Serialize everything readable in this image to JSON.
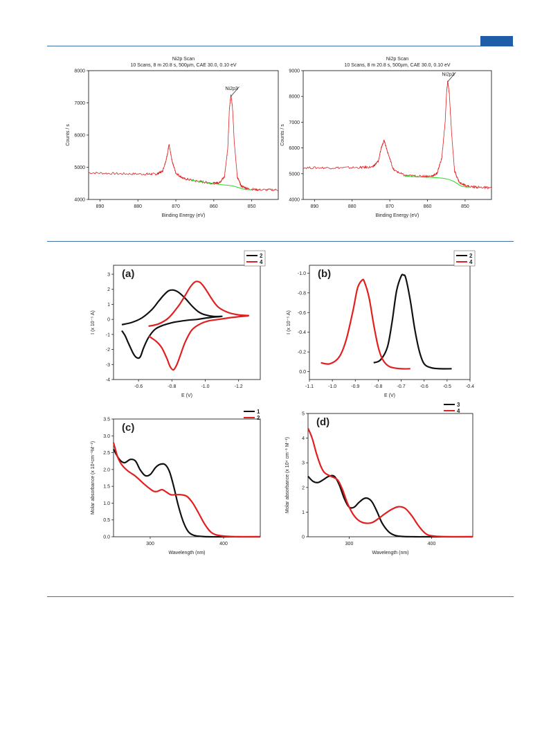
{
  "page": {
    "accent_color": "#1f5da8",
    "rule_color": "#3d6fa8"
  },
  "chart_data": [
    {
      "id": "xps-left",
      "type": "line",
      "title": "Ni2p Scan",
      "subtitle": "10 Scans,  8 m 20.8 s,  500µm,  CAE 30.0,  0.10 eV",
      "xlabel": "Binding Energy  (eV)",
      "ylabel": "Counts / s",
      "xlim": [
        893,
        843
      ],
      "ylim": [
        4000,
        8000
      ],
      "xticks": [
        "890",
        "880",
        "870",
        "860",
        "850"
      ],
      "yticks": [
        "4000",
        "5000",
        "6000",
        "7000",
        "8000"
      ],
      "annotation": "Ni2p3",
      "annotation_x": 855.5,
      "series": [
        {
          "color": "#e02020",
          "noisy": true,
          "x": [
            893,
            885,
            878,
            875,
            873.5,
            872.5,
            871.8,
            871,
            870,
            868,
            865,
            862,
            860,
            858.5,
            857.2,
            856.3,
            855.9,
            855.5,
            855.1,
            854.6,
            853.8,
            852.8,
            851,
            848,
            843
          ],
          "y": [
            4830,
            4800,
            4790,
            4790,
            4880,
            5250,
            5700,
            5200,
            4820,
            4650,
            4580,
            4530,
            4500,
            4530,
            4700,
            5600,
            6800,
            7250,
            6900,
            5800,
            4700,
            4420,
            4330,
            4300,
            4300
          ]
        },
        {
          "color": "#22dd22",
          "noisy": false,
          "x": [
            866,
            862,
            858,
            855,
            852,
            850
          ],
          "y": [
            4600,
            4520,
            4460,
            4420,
            4320,
            4300
          ]
        }
      ]
    },
    {
      "id": "xps-right",
      "type": "line",
      "title": "Ni2p Scan",
      "subtitle": "10 Scans,  8 m 20.8 s,  500µm,  CAE 30.0,  0.10 eV",
      "xlabel": "Binding Energy  (eV)",
      "ylabel": "Counts / s",
      "xlim": [
        893,
        843
      ],
      "ylim": [
        4000,
        9000
      ],
      "xticks": [
        "890",
        "880",
        "870",
        "860",
        "850"
      ],
      "yticks": [
        "4000",
        "5000",
        "6000",
        "7000",
        "8000",
        "9000"
      ],
      "annotation": "Ni2p3",
      "annotation_x": 854.7,
      "series": [
        {
          "color": "#e02020",
          "noisy": true,
          "x": [
            893,
            885,
            878,
            874.5,
            873,
            872.2,
            871.5,
            870.5,
            869,
            866,
            862,
            859,
            857.5,
            856.2,
            855.3,
            854.9,
            854.6,
            854.2,
            853.6,
            852.8,
            851.5,
            849,
            846,
            843
          ],
          "y": [
            5230,
            5230,
            5240,
            5260,
            5500,
            6050,
            6300,
            5800,
            5150,
            4930,
            4900,
            4900,
            5000,
            5600,
            7000,
            8200,
            8600,
            8100,
            6600,
            5100,
            4650,
            4500,
            4470,
            4450
          ]
        },
        {
          "color": "#22dd22",
          "noisy": false,
          "x": [
            866,
            861,
            857,
            855,
            853,
            851,
            849
          ],
          "y": [
            4900,
            4870,
            4840,
            4800,
            4700,
            4520,
            4470
          ]
        }
      ]
    },
    {
      "id": "cv-a",
      "type": "line",
      "panel_label": "(a)",
      "xlabel": "E (V)",
      "ylabel": "I (x 10⁻⁵ A)",
      "xlim": [
        -0.45,
        -1.33
      ],
      "ylim": [
        -4,
        3.6
      ],
      "xticks": [
        "-0.6",
        "-0.8",
        "-1.0",
        "-1.2"
      ],
      "xtick_values": [
        -0.6,
        -0.8,
        -1.0,
        -1.2
      ],
      "yticks": [
        "-4",
        "-3",
        "-2",
        "-1",
        "0",
        "1",
        "2",
        "3"
      ],
      "ytick_values": [
        -4,
        -3,
        -2,
        -1,
        0,
        1,
        2,
        3
      ],
      "legend": [
        "2",
        "4"
      ],
      "series": [
        {
          "name": "2",
          "color": "#111111",
          "x": [
            -0.5,
            -0.56,
            -0.62,
            -0.68,
            -0.72,
            -0.75,
            -0.78,
            -0.81,
            -0.84,
            -0.88,
            -0.92,
            -0.96,
            -1.0,
            -1.05,
            -1.1,
            -1.05,
            -1.0,
            -0.95,
            -0.9,
            -0.85,
            -0.8,
            -0.75,
            -0.7,
            -0.66,
            -0.63,
            -0.61,
            -0.59,
            -0.57,
            -0.54,
            -0.52,
            -0.5
          ],
          "y": [
            -0.35,
            -0.2,
            0.1,
            0.65,
            1.2,
            1.6,
            1.9,
            1.95,
            1.8,
            1.4,
            0.9,
            0.5,
            0.3,
            0.2,
            0.2,
            0.15,
            0.08,
            0.0,
            -0.05,
            -0.12,
            -0.22,
            -0.38,
            -0.65,
            -1.2,
            -1.9,
            -2.5,
            -2.55,
            -2.3,
            -1.6,
            -1.1,
            -0.75
          ]
        },
        {
          "name": "4",
          "color": "#e02020",
          "x": [
            -0.66,
            -0.72,
            -0.78,
            -0.84,
            -0.88,
            -0.91,
            -0.94,
            -0.97,
            -1.0,
            -1.04,
            -1.08,
            -1.14,
            -1.2,
            -1.26,
            -1.2,
            -1.14,
            -1.08,
            -1.02,
            -0.97,
            -0.92,
            -0.88,
            -0.85,
            -0.83,
            -0.81,
            -0.79,
            -0.77,
            -0.74,
            -0.71,
            -0.68,
            -0.66
          ],
          "y": [
            -0.45,
            -0.3,
            0.1,
            0.9,
            1.6,
            2.15,
            2.5,
            2.45,
            2.05,
            1.35,
            0.8,
            0.45,
            0.3,
            0.25,
            0.18,
            0.1,
            0.0,
            -0.1,
            -0.3,
            -0.7,
            -1.5,
            -2.4,
            -3.0,
            -3.35,
            -3.15,
            -2.6,
            -1.9,
            -1.5,
            -1.25,
            -1.1
          ]
        }
      ]
    },
    {
      "id": "dpv-b",
      "type": "line",
      "panel_label": "(b)",
      "xlabel": "E (V)",
      "ylabel": "I (x 10⁻⁵ A)",
      "xlim": [
        -1.1,
        -0.4
      ],
      "ylim": [
        0.08,
        -1.08
      ],
      "xticks": [
        "-1.1",
        "-1.0",
        "-0.9",
        "-0.8",
        "-0.7",
        "-0.6",
        "-0.5",
        "-0.4"
      ],
      "xtick_values": [
        -1.1,
        -1.0,
        -0.9,
        -0.8,
        -0.7,
        -0.6,
        -0.5,
        -0.4
      ],
      "yticks": [
        "0.0",
        "-0.2",
        "-0.4",
        "-0.6",
        "-0.8",
        "-1.0"
      ],
      "ytick_values": [
        0.0,
        -0.2,
        -0.4,
        -0.6,
        -0.8,
        -1.0
      ],
      "legend": [
        "2",
        "4"
      ],
      "series": [
        {
          "name": "2",
          "color": "#111111",
          "x": [
            -0.82,
            -0.79,
            -0.76,
            -0.74,
            -0.72,
            -0.7,
            -0.69,
            -0.68,
            -0.66,
            -0.64,
            -0.62,
            -0.6,
            -0.57,
            -0.53,
            -0.48
          ],
          "y": [
            -0.09,
            -0.12,
            -0.25,
            -0.5,
            -0.82,
            -0.97,
            -0.98,
            -0.95,
            -0.72,
            -0.42,
            -0.2,
            -0.08,
            -0.04,
            -0.03,
            -0.03
          ]
        },
        {
          "name": "4",
          "color": "#e02020",
          "x": [
            -1.05,
            -1.01,
            -0.97,
            -0.94,
            -0.91,
            -0.89,
            -0.87,
            -0.86,
            -0.84,
            -0.82,
            -0.8,
            -0.78,
            -0.75,
            -0.7,
            -0.66
          ],
          "y": [
            -0.09,
            -0.08,
            -0.15,
            -0.32,
            -0.62,
            -0.85,
            -0.93,
            -0.91,
            -0.75,
            -0.48,
            -0.25,
            -0.12,
            -0.05,
            -0.03,
            -0.03
          ]
        }
      ]
    },
    {
      "id": "uv-c",
      "type": "line",
      "panel_label": "(c)",
      "xlabel": "Wavelength (nm)",
      "ylabel": "Molar absorbance (x 10⁴cm⁻¹M⁻¹)",
      "xlim": [
        250,
        450
      ],
      "ylim": [
        0,
        3.5
      ],
      "xticks": [
        "300",
        "400"
      ],
      "xtick_values": [
        300,
        400
      ],
      "yticks": [
        "0.0",
        "0.5",
        "1.0",
        "1.5",
        "2.0",
        "2.5",
        "3.0",
        "3.5"
      ],
      "ytick_values": [
        0,
        0.5,
        1.0,
        1.5,
        2.0,
        2.5,
        3.0,
        3.5
      ],
      "legend": [
        "1",
        "2"
      ],
      "series": [
        {
          "name": "1",
          "color": "#111111",
          "x": [
            250,
            258,
            265,
            273,
            280,
            286,
            293,
            300,
            307,
            313,
            320,
            326,
            332,
            338,
            345,
            352,
            360,
            370,
            380,
            400,
            430,
            450
          ],
          "y": [
            2.6,
            2.3,
            2.2,
            2.3,
            2.25,
            2.0,
            1.82,
            1.85,
            2.05,
            2.15,
            2.15,
            1.95,
            1.5,
            0.95,
            0.45,
            0.15,
            0.04,
            0.01,
            0.0,
            0.0,
            0.0,
            0.0
          ]
        },
        {
          "name": "2",
          "color": "#e02020",
          "x": [
            250,
            256,
            262,
            270,
            280,
            290,
            300,
            305,
            310,
            316,
            322,
            328,
            335,
            342,
            350,
            358,
            366,
            375,
            385,
            400,
            420,
            450
          ],
          "y": [
            2.8,
            2.35,
            2.12,
            1.95,
            1.8,
            1.6,
            1.42,
            1.35,
            1.35,
            1.4,
            1.33,
            1.25,
            1.25,
            1.25,
            1.2,
            1.0,
            0.7,
            0.35,
            0.1,
            0.02,
            0.0,
            0.0
          ]
        }
      ]
    },
    {
      "id": "uv-d",
      "type": "line",
      "panel_label": "(d)",
      "xlabel": "Wavelength (nm)",
      "ylabel": "Molar absorbance (x 10⁴ cm⁻¹ M⁻¹)",
      "xlim": [
        250,
        450
      ],
      "ylim": [
        0,
        5
      ],
      "xticks": [
        "300",
        "400"
      ],
      "xtick_values": [
        300,
        400
      ],
      "yticks": [
        "0",
        "1",
        "2",
        "3",
        "4",
        "5"
      ],
      "ytick_values": [
        0,
        1,
        2,
        3,
        4,
        5
      ],
      "legend": [
        "3",
        "4"
      ],
      "series": [
        {
          "name": "3",
          "color": "#111111",
          "x": [
            250,
            256,
            262,
            268,
            275,
            282,
            288,
            294,
            300,
            306,
            312,
            318,
            323,
            328,
            334,
            340,
            348,
            356,
            365,
            380,
            400,
            450
          ],
          "y": [
            2.45,
            2.25,
            2.2,
            2.3,
            2.45,
            2.45,
            2.1,
            1.55,
            1.2,
            1.2,
            1.4,
            1.55,
            1.55,
            1.4,
            1.0,
            0.55,
            0.2,
            0.05,
            0.01,
            0.0,
            0.0,
            0.0
          ]
        },
        {
          "name": "4",
          "color": "#e02020",
          "x": [
            250,
            255,
            260,
            265,
            270,
            278,
            286,
            292,
            298,
            305,
            312,
            320,
            328,
            336,
            344,
            352,
            360,
            368,
            376,
            384,
            392,
            400,
            420,
            450
          ],
          "y": [
            4.4,
            4.0,
            3.4,
            2.9,
            2.6,
            2.45,
            2.3,
            1.9,
            1.35,
            0.9,
            0.65,
            0.55,
            0.58,
            0.75,
            0.95,
            1.12,
            1.22,
            1.15,
            0.85,
            0.45,
            0.15,
            0.04,
            0.0,
            0.0
          ]
        }
      ]
    }
  ]
}
